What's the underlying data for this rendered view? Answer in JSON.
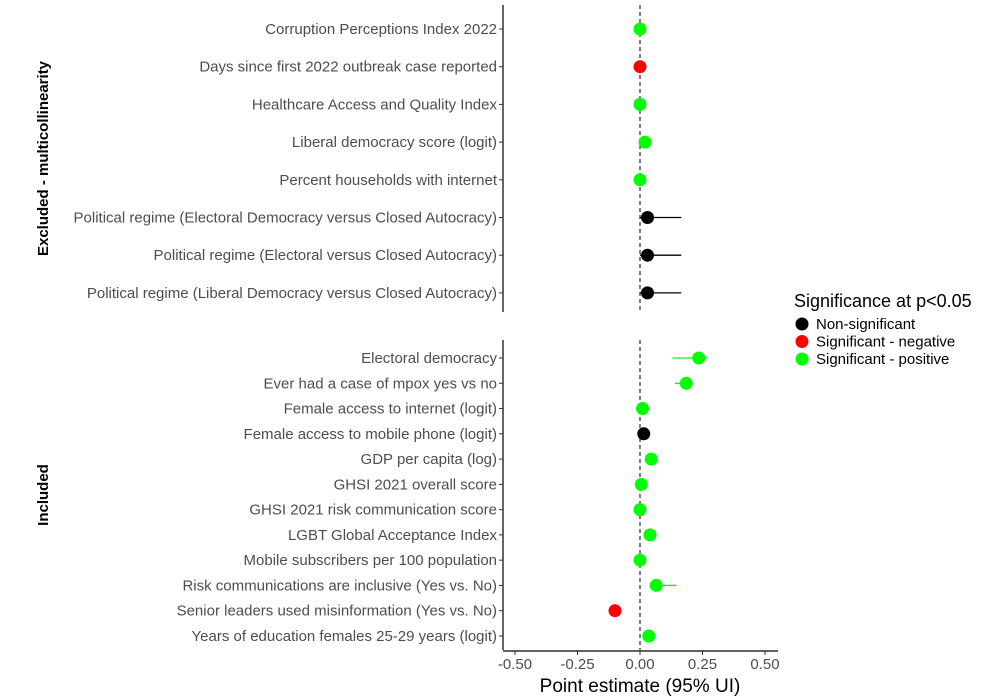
{
  "chart_data": {
    "type": "scatter",
    "xlabel": "Point estimate (95% UI)",
    "xlim": [
      -0.55,
      0.55
    ],
    "x_ticks": [
      -0.5,
      -0.25,
      0.0,
      0.25,
      0.5
    ],
    "x_tick_labels": [
      "-0.50",
      "-0.25",
      "0.00",
      "0.25",
      "0.50"
    ],
    "reference_line_x": 0,
    "legend": {
      "title": "Significance at p<0.05",
      "placement": "right",
      "entries": [
        {
          "label": "Non-significant",
          "color": "#000000"
        },
        {
          "label": "Significant - negative",
          "color": "#ff0000"
        },
        {
          "label": "Significant - positive",
          "color": "#00ff00"
        }
      ]
    },
    "panels": [
      {
        "facet": "Excluded - multicollinearity",
        "rows": [
          {
            "label": "Corruption Perceptions Index 2022",
            "estimate": 0.0,
            "lower": -0.005,
            "upper": 0.005,
            "significance": "Significant - positive"
          },
          {
            "label": "Days since first 2022 outbreak case reported",
            "estimate": 0.0,
            "lower": -0.005,
            "upper": 0.005,
            "significance": "Significant - negative"
          },
          {
            "label": "Healthcare Access and Quality Index",
            "estimate": 0.0,
            "lower": -0.005,
            "upper": 0.005,
            "significance": "Significant - positive"
          },
          {
            "label": "Liberal democracy score (logit)",
            "estimate": 0.02,
            "lower": 0.015,
            "upper": 0.025,
            "significance": "Significant - positive"
          },
          {
            "label": "Percent households with internet",
            "estimate": 0.0,
            "lower": -0.005,
            "upper": 0.005,
            "significance": "Significant - positive"
          },
          {
            "label": "Political regime (Electoral Democracy versus Closed Autocracy)",
            "estimate": 0.03,
            "lower": 0.0,
            "upper": 0.165,
            "significance": "Non-significant"
          },
          {
            "label": "Political regime (Electoral versus Closed Autocracy)",
            "estimate": 0.03,
            "lower": 0.0,
            "upper": 0.165,
            "significance": "Non-significant"
          },
          {
            "label": "Political regime (Liberal Democracy versus Closed Autocracy)",
            "estimate": 0.03,
            "lower": 0.0,
            "upper": 0.165,
            "significance": "Non-significant"
          }
        ]
      },
      {
        "facet": "Included",
        "rows": [
          {
            "label": "Electoral democracy",
            "estimate": 0.235,
            "lower": 0.13,
            "upper": 0.27,
            "significance": "Significant - positive"
          },
          {
            "label": "Ever had a case of mpox yes vs no",
            "estimate": 0.185,
            "lower": 0.14,
            "upper": 0.2,
            "significance": "Significant - positive"
          },
          {
            "label": "Female access to internet (logit)",
            "estimate": 0.01,
            "lower": 0.005,
            "upper": 0.015,
            "significance": "Significant - positive"
          },
          {
            "label": "Female access to mobile phone (logit)",
            "estimate": 0.015,
            "lower": 0.01,
            "upper": 0.02,
            "significance": "Non-significant"
          },
          {
            "label": "GDP per capita (log)",
            "estimate": 0.045,
            "lower": 0.04,
            "upper": 0.05,
            "significance": "Significant - positive"
          },
          {
            "label": "GHSI 2021 overall score",
            "estimate": 0.005,
            "lower": 0.0,
            "upper": 0.01,
            "significance": "Significant - positive"
          },
          {
            "label": "GHSI 2021 risk communication score",
            "estimate": 0.0,
            "lower": -0.005,
            "upper": 0.005,
            "significance": "Significant - positive"
          },
          {
            "label": "LGBT Global Acceptance Index",
            "estimate": 0.04,
            "lower": 0.035,
            "upper": 0.045,
            "significance": "Significant - positive"
          },
          {
            "label": "Mobile subscribers per 100 population",
            "estimate": 0.0,
            "lower": -0.005,
            "upper": 0.005,
            "significance": "Significant - positive"
          },
          {
            "label": "Risk communications are inclusive (Yes vs. No)",
            "estimate": 0.065,
            "lower": 0.04,
            "upper": 0.145,
            "significance": "Significant - positive"
          },
          {
            "label": "Senior leaders used misinformation (Yes vs. No)",
            "estimate": -0.1,
            "lower": -0.125,
            "upper": -0.08,
            "significance": "Significant - negative"
          },
          {
            "label": "Years of education females 25-29 years (logit)",
            "estimate": 0.035,
            "lower": 0.03,
            "upper": 0.04,
            "significance": "Significant - positive"
          }
        ]
      }
    ]
  }
}
